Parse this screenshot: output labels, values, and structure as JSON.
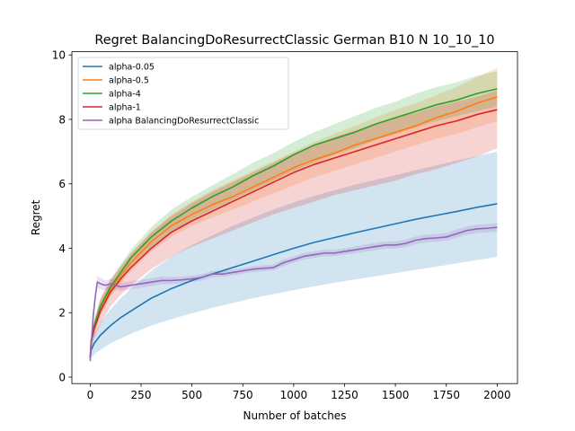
{
  "chart_data": {
    "type": "line",
    "title": "Regret BalancingDoResurrectClassic German B10 N 10_10_10",
    "xlabel": "Number of batches",
    "ylabel": "Regret",
    "xlim": [
      -90,
      2100
    ],
    "ylim": [
      -0.2,
      10.1
    ],
    "xticks": [
      0,
      250,
      500,
      750,
      1000,
      1250,
      1500,
      1750,
      2000
    ],
    "xtick_labels": [
      "0",
      "250",
      "500",
      "750",
      "1000",
      "1250",
      "1500",
      "1750",
      "2000"
    ],
    "yticks": [
      0,
      2,
      4,
      6,
      8,
      10
    ],
    "ytick_labels": [
      "0",
      "2",
      "4",
      "6",
      "8",
      "10"
    ],
    "grid": false,
    "legend_position": "top-left",
    "series": [
      {
        "name": "alpha-0.05",
        "color": "#1f77b4",
        "x": [
          0,
          5,
          20,
          50,
          100,
          150,
          200,
          300,
          400,
          500,
          600,
          700,
          800,
          900,
          1000,
          1100,
          1200,
          1300,
          1400,
          1500,
          1600,
          1700,
          1800,
          1900,
          2000
        ],
        "y": [
          0.6,
          0.85,
          1.05,
          1.3,
          1.6,
          1.85,
          2.05,
          2.45,
          2.75,
          3.0,
          3.2,
          3.4,
          3.6,
          3.8,
          4.0,
          4.18,
          4.33,
          4.48,
          4.62,
          4.76,
          4.9,
          5.02,
          5.14,
          5.27,
          5.38
        ],
        "lower": [
          0.5,
          0.6,
          0.7,
          0.85,
          1.05,
          1.2,
          1.35,
          1.6,
          1.8,
          1.98,
          2.15,
          2.3,
          2.45,
          2.58,
          2.7,
          2.82,
          2.93,
          3.03,
          3.13,
          3.23,
          3.33,
          3.43,
          3.53,
          3.63,
          3.74
        ],
        "upper": [
          0.75,
          1.05,
          1.35,
          1.7,
          2.1,
          2.45,
          2.75,
          3.3,
          3.75,
          4.1,
          4.4,
          4.7,
          4.95,
          5.2,
          5.42,
          5.62,
          5.8,
          5.97,
          6.12,
          6.27,
          6.42,
          6.57,
          6.72,
          6.86,
          7.0
        ]
      },
      {
        "name": "alpha-0.5",
        "color": "#ff7f0e",
        "x": [
          0,
          5,
          20,
          50,
          100,
          150,
          200,
          300,
          400,
          500,
          600,
          700,
          800,
          900,
          1000,
          1100,
          1200,
          1300,
          1400,
          1500,
          1600,
          1700,
          1800,
          1900,
          2000
        ],
        "y": [
          0.6,
          1.1,
          1.55,
          2.15,
          2.75,
          3.15,
          3.55,
          4.2,
          4.7,
          5.05,
          5.35,
          5.6,
          5.9,
          6.2,
          6.5,
          6.75,
          6.95,
          7.2,
          7.4,
          7.6,
          7.8,
          8.05,
          8.25,
          8.5,
          8.7
        ],
        "lower": [
          0.5,
          0.95,
          1.35,
          1.9,
          2.5,
          2.9,
          3.3,
          3.9,
          4.35,
          4.7,
          4.95,
          5.2,
          5.45,
          5.7,
          5.95,
          6.2,
          6.4,
          6.6,
          6.8,
          7.0,
          7.2,
          7.4,
          7.55,
          7.75,
          7.95
        ],
        "upper": [
          0.7,
          1.25,
          1.75,
          2.4,
          3.0,
          3.4,
          3.8,
          4.5,
          5.05,
          5.45,
          5.8,
          6.1,
          6.4,
          6.7,
          7.0,
          7.3,
          7.55,
          7.8,
          8.05,
          8.3,
          8.5,
          8.75,
          9.0,
          9.3,
          9.6
        ]
      },
      {
        "name": "alpha-4",
        "color": "#2ca02c",
        "x": [
          0,
          5,
          20,
          50,
          100,
          150,
          200,
          300,
          400,
          500,
          600,
          700,
          800,
          900,
          1000,
          1100,
          1200,
          1300,
          1400,
          1500,
          1600,
          1700,
          1800,
          1900,
          2000
        ],
        "y": [
          0.6,
          1.15,
          1.6,
          2.2,
          2.8,
          3.25,
          3.7,
          4.35,
          4.85,
          5.25,
          5.6,
          5.9,
          6.25,
          6.55,
          6.9,
          7.2,
          7.4,
          7.6,
          7.85,
          8.05,
          8.25,
          8.45,
          8.6,
          8.8,
          8.95
        ],
        "lower": [
          0.5,
          1.0,
          1.4,
          1.95,
          2.55,
          3.0,
          3.45,
          4.05,
          4.5,
          4.9,
          5.2,
          5.5,
          5.8,
          6.1,
          6.4,
          6.65,
          6.9,
          7.1,
          7.35,
          7.55,
          7.75,
          7.95,
          8.1,
          8.25,
          8.4
        ],
        "upper": [
          0.75,
          1.3,
          1.8,
          2.45,
          3.05,
          3.5,
          3.95,
          4.65,
          5.2,
          5.6,
          5.95,
          6.3,
          6.65,
          6.95,
          7.3,
          7.6,
          7.85,
          8.1,
          8.35,
          8.55,
          8.8,
          9.0,
          9.15,
          9.35,
          9.5
        ]
      },
      {
        "name": "alpha-1",
        "color": "#d62728",
        "x": [
          0,
          5,
          20,
          50,
          100,
          150,
          200,
          300,
          400,
          500,
          600,
          700,
          800,
          900,
          1000,
          1100,
          1200,
          1300,
          1400,
          1500,
          1600,
          1700,
          1800,
          1900,
          2000
        ],
        "y": [
          0.6,
          1.1,
          1.5,
          2.05,
          2.65,
          3.05,
          3.4,
          4.0,
          4.5,
          4.85,
          5.15,
          5.45,
          5.75,
          6.05,
          6.35,
          6.6,
          6.8,
          7.0,
          7.2,
          7.4,
          7.6,
          7.8,
          7.95,
          8.15,
          8.3
        ],
        "lower": [
          0.5,
          0.85,
          1.2,
          1.65,
          2.2,
          2.55,
          2.85,
          3.35,
          3.75,
          4.05,
          4.3,
          4.55,
          4.8,
          5.05,
          5.25,
          5.45,
          5.65,
          5.8,
          5.95,
          6.1,
          6.3,
          6.45,
          6.65,
          6.85,
          7.1
        ],
        "upper": [
          0.7,
          1.3,
          1.75,
          2.4,
          3.0,
          3.45,
          3.85,
          4.5,
          5.0,
          5.4,
          5.75,
          6.05,
          6.35,
          6.65,
          6.95,
          7.2,
          7.45,
          7.65,
          7.85,
          8.05,
          8.2,
          8.4,
          8.55,
          8.7,
          8.9
        ]
      },
      {
        "name": "alpha BalancingDoResurrectClassic",
        "color": "#9467bd",
        "x": [
          0,
          5,
          15,
          25,
          35,
          50,
          75,
          100,
          150,
          200,
          250,
          300,
          350,
          400,
          450,
          500,
          550,
          600,
          650,
          700,
          750,
          800,
          850,
          900,
          950,
          1000,
          1050,
          1100,
          1150,
          1200,
          1250,
          1300,
          1350,
          1400,
          1450,
          1500,
          1550,
          1600,
          1650,
          1700,
          1750,
          1800,
          1850,
          1900,
          1950,
          2000
        ],
        "y": [
          0.5,
          1.0,
          1.9,
          2.5,
          2.95,
          2.9,
          2.85,
          2.9,
          2.8,
          2.85,
          2.9,
          2.95,
          3.0,
          3.0,
          3.02,
          3.05,
          3.1,
          3.2,
          3.2,
          3.25,
          3.3,
          3.35,
          3.38,
          3.4,
          3.55,
          3.65,
          3.75,
          3.8,
          3.85,
          3.85,
          3.9,
          3.95,
          4.0,
          4.05,
          4.1,
          4.1,
          4.15,
          4.25,
          4.3,
          4.32,
          4.35,
          4.45,
          4.55,
          4.6,
          4.62,
          4.65
        ],
        "lower": [
          0.4,
          0.85,
          1.7,
          2.3,
          2.75,
          2.72,
          2.7,
          2.75,
          2.68,
          2.72,
          2.78,
          2.83,
          2.88,
          2.89,
          2.92,
          2.95,
          3.0,
          3.1,
          3.11,
          3.16,
          3.21,
          3.26,
          3.29,
          3.31,
          3.45,
          3.55,
          3.65,
          3.7,
          3.75,
          3.75,
          3.8,
          3.84,
          3.89,
          3.94,
          3.99,
          3.99,
          4.03,
          4.13,
          4.18,
          4.2,
          4.23,
          4.32,
          4.42,
          4.47,
          4.49,
          4.52
        ],
        "upper": [
          0.6,
          1.15,
          2.1,
          2.7,
          3.15,
          3.08,
          3.0,
          3.05,
          2.92,
          2.98,
          3.02,
          3.07,
          3.12,
          3.11,
          3.12,
          3.15,
          3.2,
          3.3,
          3.29,
          3.34,
          3.39,
          3.44,
          3.47,
          3.49,
          3.65,
          3.75,
          3.85,
          3.9,
          3.95,
          3.95,
          4.0,
          4.06,
          4.11,
          4.16,
          4.21,
          4.21,
          4.27,
          4.37,
          4.42,
          4.44,
          4.47,
          4.58,
          4.68,
          4.73,
          4.75,
          4.78
        ]
      }
    ]
  }
}
